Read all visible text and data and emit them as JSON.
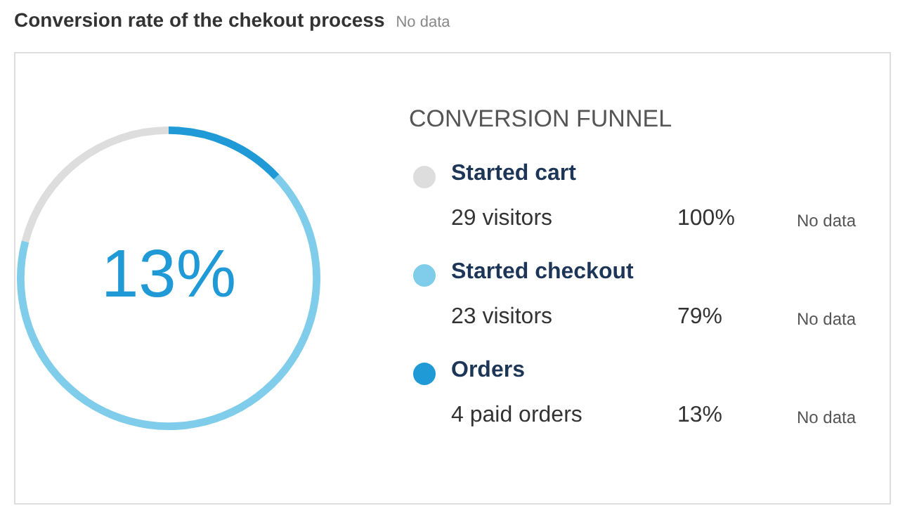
{
  "chart_data": {
    "type": "other",
    "title": "Conversion rate of the chekout process",
    "subtitle": "No data",
    "legend_title": "CONVERSION FUNNEL",
    "categories": [
      "Started cart",
      "Started checkout",
      "Orders"
    ],
    "values": [
      100,
      79,
      13
    ],
    "value_labels": [
      "100%",
      "79%",
      "13%"
    ],
    "colors": [
      "#dddddd",
      "#7fcdea",
      "#1f9ad6"
    ],
    "annotations": [
      "29 visitors",
      "23 visitors",
      "4 paid orders",
      "No data",
      "No data",
      "No data"
    ]
  }
}
